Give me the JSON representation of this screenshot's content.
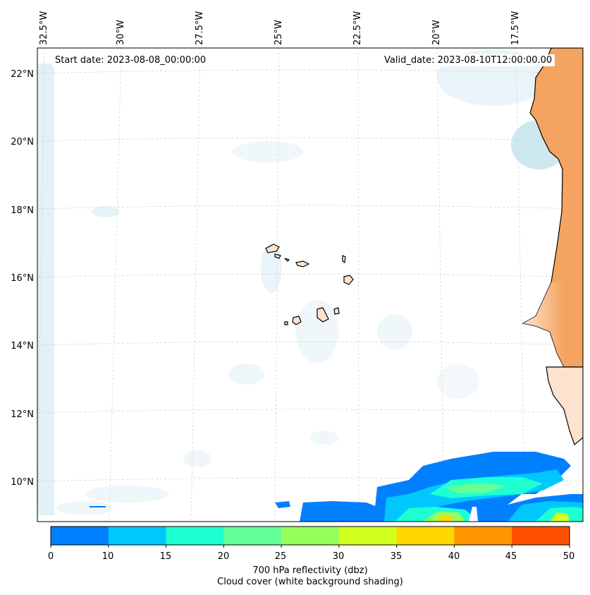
{
  "map": {
    "start_date": "Start date: 2023-08-08_00:00:00",
    "valid_date": "Valid_date: 2023-08-10T12:00:00.00",
    "lon_labels": [
      "32.5°W",
      "30°W",
      "27.5°W",
      "25°W",
      "22.5°W",
      "20°W",
      "17.5°W"
    ],
    "lat_labels": [
      "22°N",
      "20°N",
      "18°N",
      "16°N",
      "14°N",
      "12°N",
      "10°N"
    ],
    "land_color": "#f4a460",
    "cloud_color": "#add8e6"
  },
  "colorbar": {
    "ticks": [
      "0",
      "10",
      "15",
      "20",
      "25",
      "30",
      "35",
      "40",
      "45",
      "50"
    ],
    "colors": [
      "#0080ff",
      "#00c8ff",
      "#1effd2",
      "#64ff96",
      "#96ff5a",
      "#d2ff1e",
      "#ffd700",
      "#ff9600",
      "#ff5000"
    ],
    "label_line1": "700 hPa reflectivity (dbz)",
    "label_line2": "Cloud cover (white background shading)"
  }
}
